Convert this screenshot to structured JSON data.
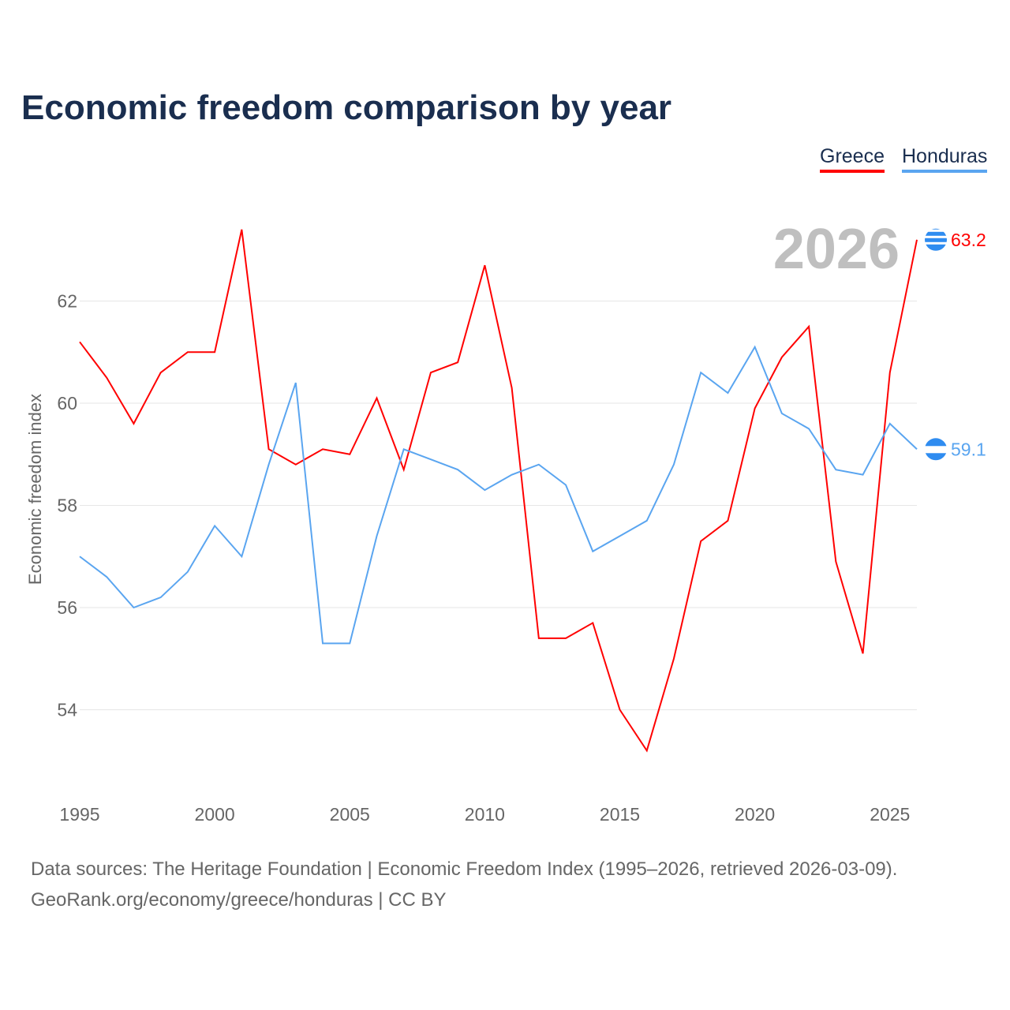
{
  "chart_data": {
    "type": "line",
    "title": "Economic freedom comparison by year",
    "ylabel": "Economic freedom index",
    "xlabel": "",
    "ylim": [
      52.3,
      64.3
    ],
    "xlim": [
      1995,
      2026
    ],
    "yticks": [
      54,
      56,
      58,
      60,
      62
    ],
    "xticks": [
      1995,
      2000,
      2005,
      2010,
      2015,
      2020,
      2025
    ],
    "grid": true,
    "legend_position": "top-right",
    "year_label": "2026",
    "x": [
      1995,
      1996,
      1997,
      1998,
      1999,
      2000,
      2001,
      2002,
      2003,
      2004,
      2005,
      2006,
      2007,
      2008,
      2009,
      2010,
      2011,
      2012,
      2013,
      2014,
      2015,
      2016,
      2017,
      2018,
      2019,
      2020,
      2021,
      2022,
      2023,
      2024,
      2025,
      2026
    ],
    "series": [
      {
        "name": "Greece",
        "color": "#ff0000",
        "end_label": "63.2",
        "values": [
          61.2,
          60.5,
          59.6,
          60.6,
          61.0,
          61.0,
          63.4,
          59.1,
          58.8,
          59.1,
          59.0,
          60.1,
          58.7,
          60.6,
          60.8,
          62.7,
          60.3,
          55.4,
          55.4,
          55.7,
          54.0,
          53.2,
          55.0,
          57.3,
          57.7,
          59.9,
          60.9,
          61.5,
          56.9,
          55.1,
          60.6,
          63.2
        ]
      },
      {
        "name": "Honduras",
        "color": "#5aa5f0",
        "end_label": "59.1",
        "values": [
          57.0,
          56.6,
          56.0,
          56.2,
          56.7,
          57.6,
          57.0,
          58.8,
          60.4,
          55.3,
          55.3,
          57.4,
          59.1,
          58.9,
          58.7,
          58.3,
          58.6,
          58.8,
          58.4,
          57.1,
          57.4,
          57.7,
          58.8,
          60.6,
          60.2,
          61.1,
          59.8,
          59.5,
          58.7,
          58.6,
          59.6,
          59.1
        ]
      }
    ]
  },
  "footer": {
    "line1": "Data sources: The Heritage Foundation | Economic Freedom Index (1995–2026, retrieved 2026-03-09).",
    "line2": "GeoRank.org/economy/greece/honduras | CC BY"
  }
}
